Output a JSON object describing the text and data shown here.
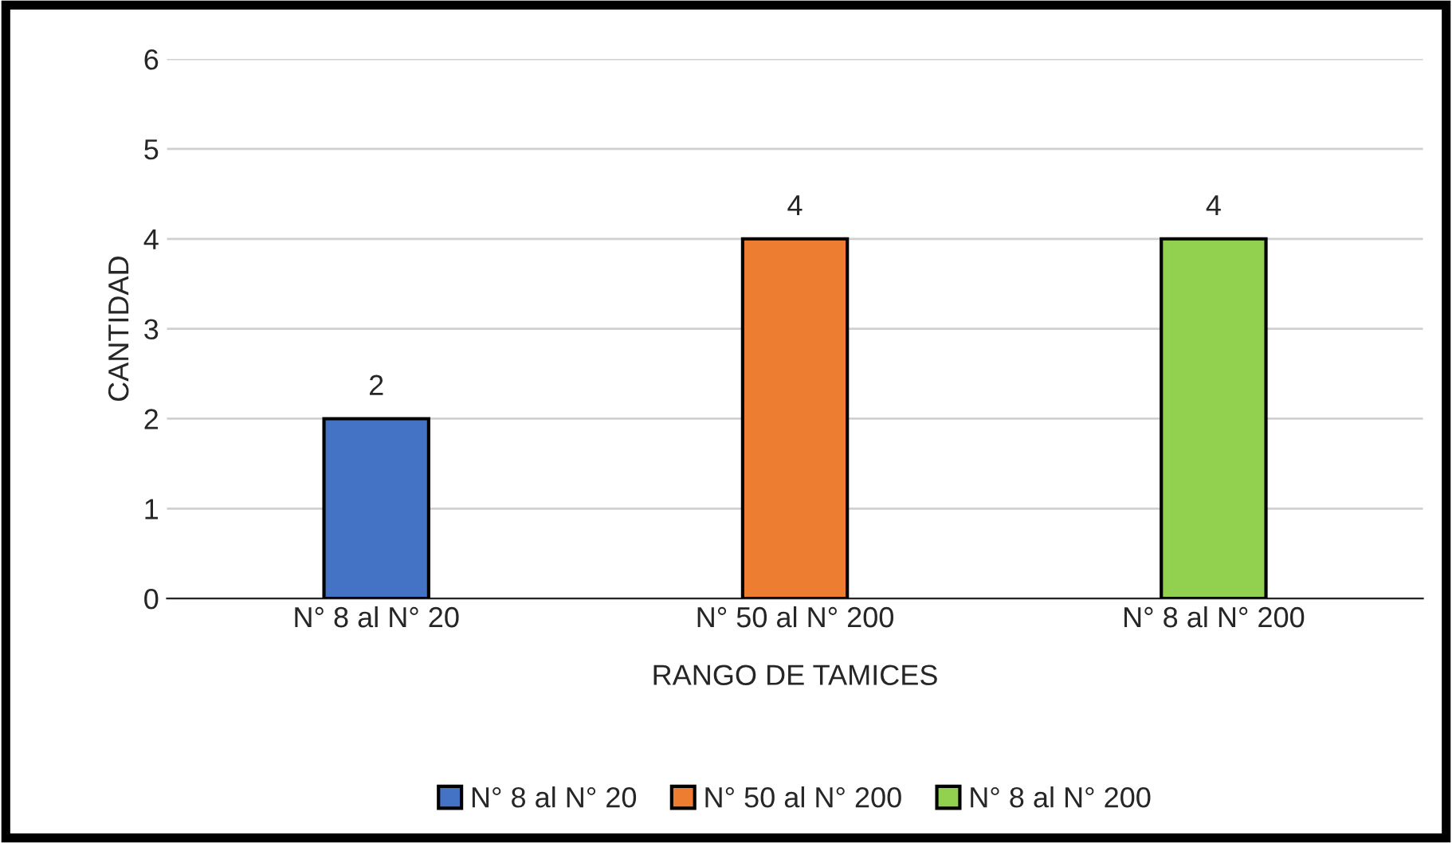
{
  "chart_data": {
    "type": "bar",
    "xlabel": "RANGO DE TAMICES",
    "ylabel": "CANTIDAD",
    "categories": [
      "N° 8 al N° 20",
      "N° 50 al N° 200",
      "N° 8 al N° 200"
    ],
    "stacked": true,
    "series": [
      {
        "name": "N° 8 al N° 20",
        "color": "#4472c4",
        "values": [
          2,
          null,
          null
        ]
      },
      {
        "name": "N° 50 al N° 200",
        "color": "#ed7d31",
        "values": [
          null,
          4,
          null
        ]
      },
      {
        "name": "N° 8 al N° 200",
        "color": "#92d050",
        "values": [
          null,
          null,
          4
        ]
      }
    ],
    "ylim": [
      0,
      6
    ],
    "yticks": [
      0,
      1,
      2,
      3,
      4,
      5,
      6
    ],
    "grid": "y",
    "legend": "bottom",
    "data_labels": true
  }
}
